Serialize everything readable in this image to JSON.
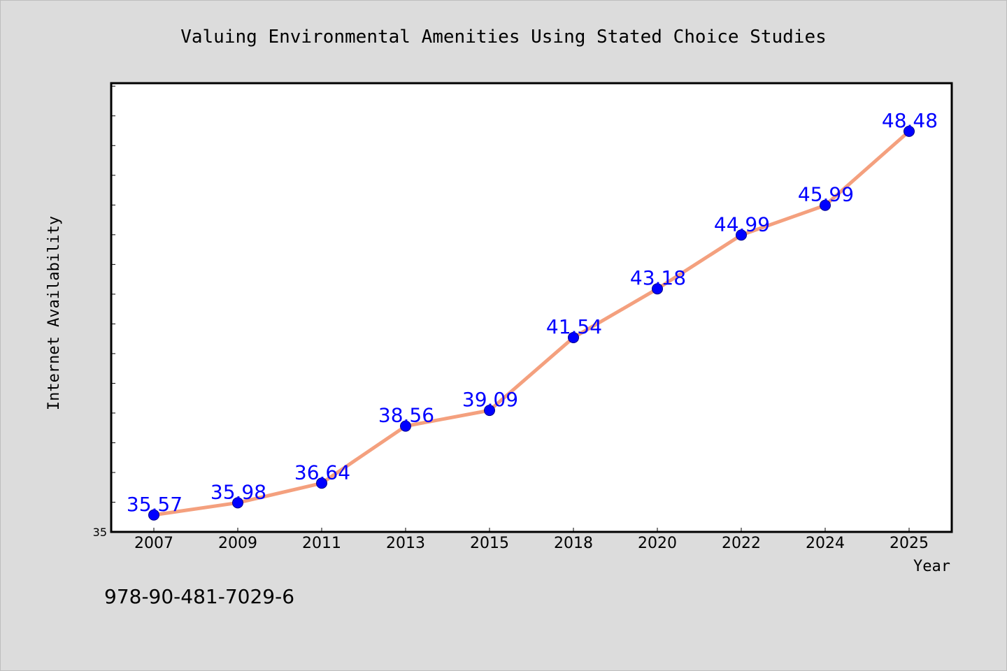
{
  "chart_data": {
    "type": "line",
    "title": "Valuing Environmental Amenities Using Stated Choice Studies",
    "xlabel": "Year",
    "ylabel": "Internet Availability",
    "categories": [
      "2007",
      "2009",
      "2011",
      "2013",
      "2015",
      "2018",
      "2020",
      "2022",
      "2024",
      "2025"
    ],
    "series": [
      {
        "values": [
          35.57,
          35.98,
          36.64,
          38.56,
          39.09,
          41.54,
          43.18,
          44.99,
          45.99,
          48.48
        ],
        "data_labels": [
          "35.57",
          "35.98",
          "36.64",
          "38.56",
          "39.09",
          "41.54",
          "43.18",
          "44.99",
          "45.99",
          "48.48"
        ]
      }
    ],
    "y_tick_labels": [
      "35"
    ],
    "ylim": [
      35,
      50.1
    ],
    "grid": false,
    "legend": "none",
    "colors": {
      "line": "#f4a07e",
      "marker": "#0000ff",
      "data_label": "#0000ff",
      "plot_background": "#ffffff",
      "page_background": "#dcdcdc"
    },
    "footnote": "978-90-481-7029-6"
  }
}
